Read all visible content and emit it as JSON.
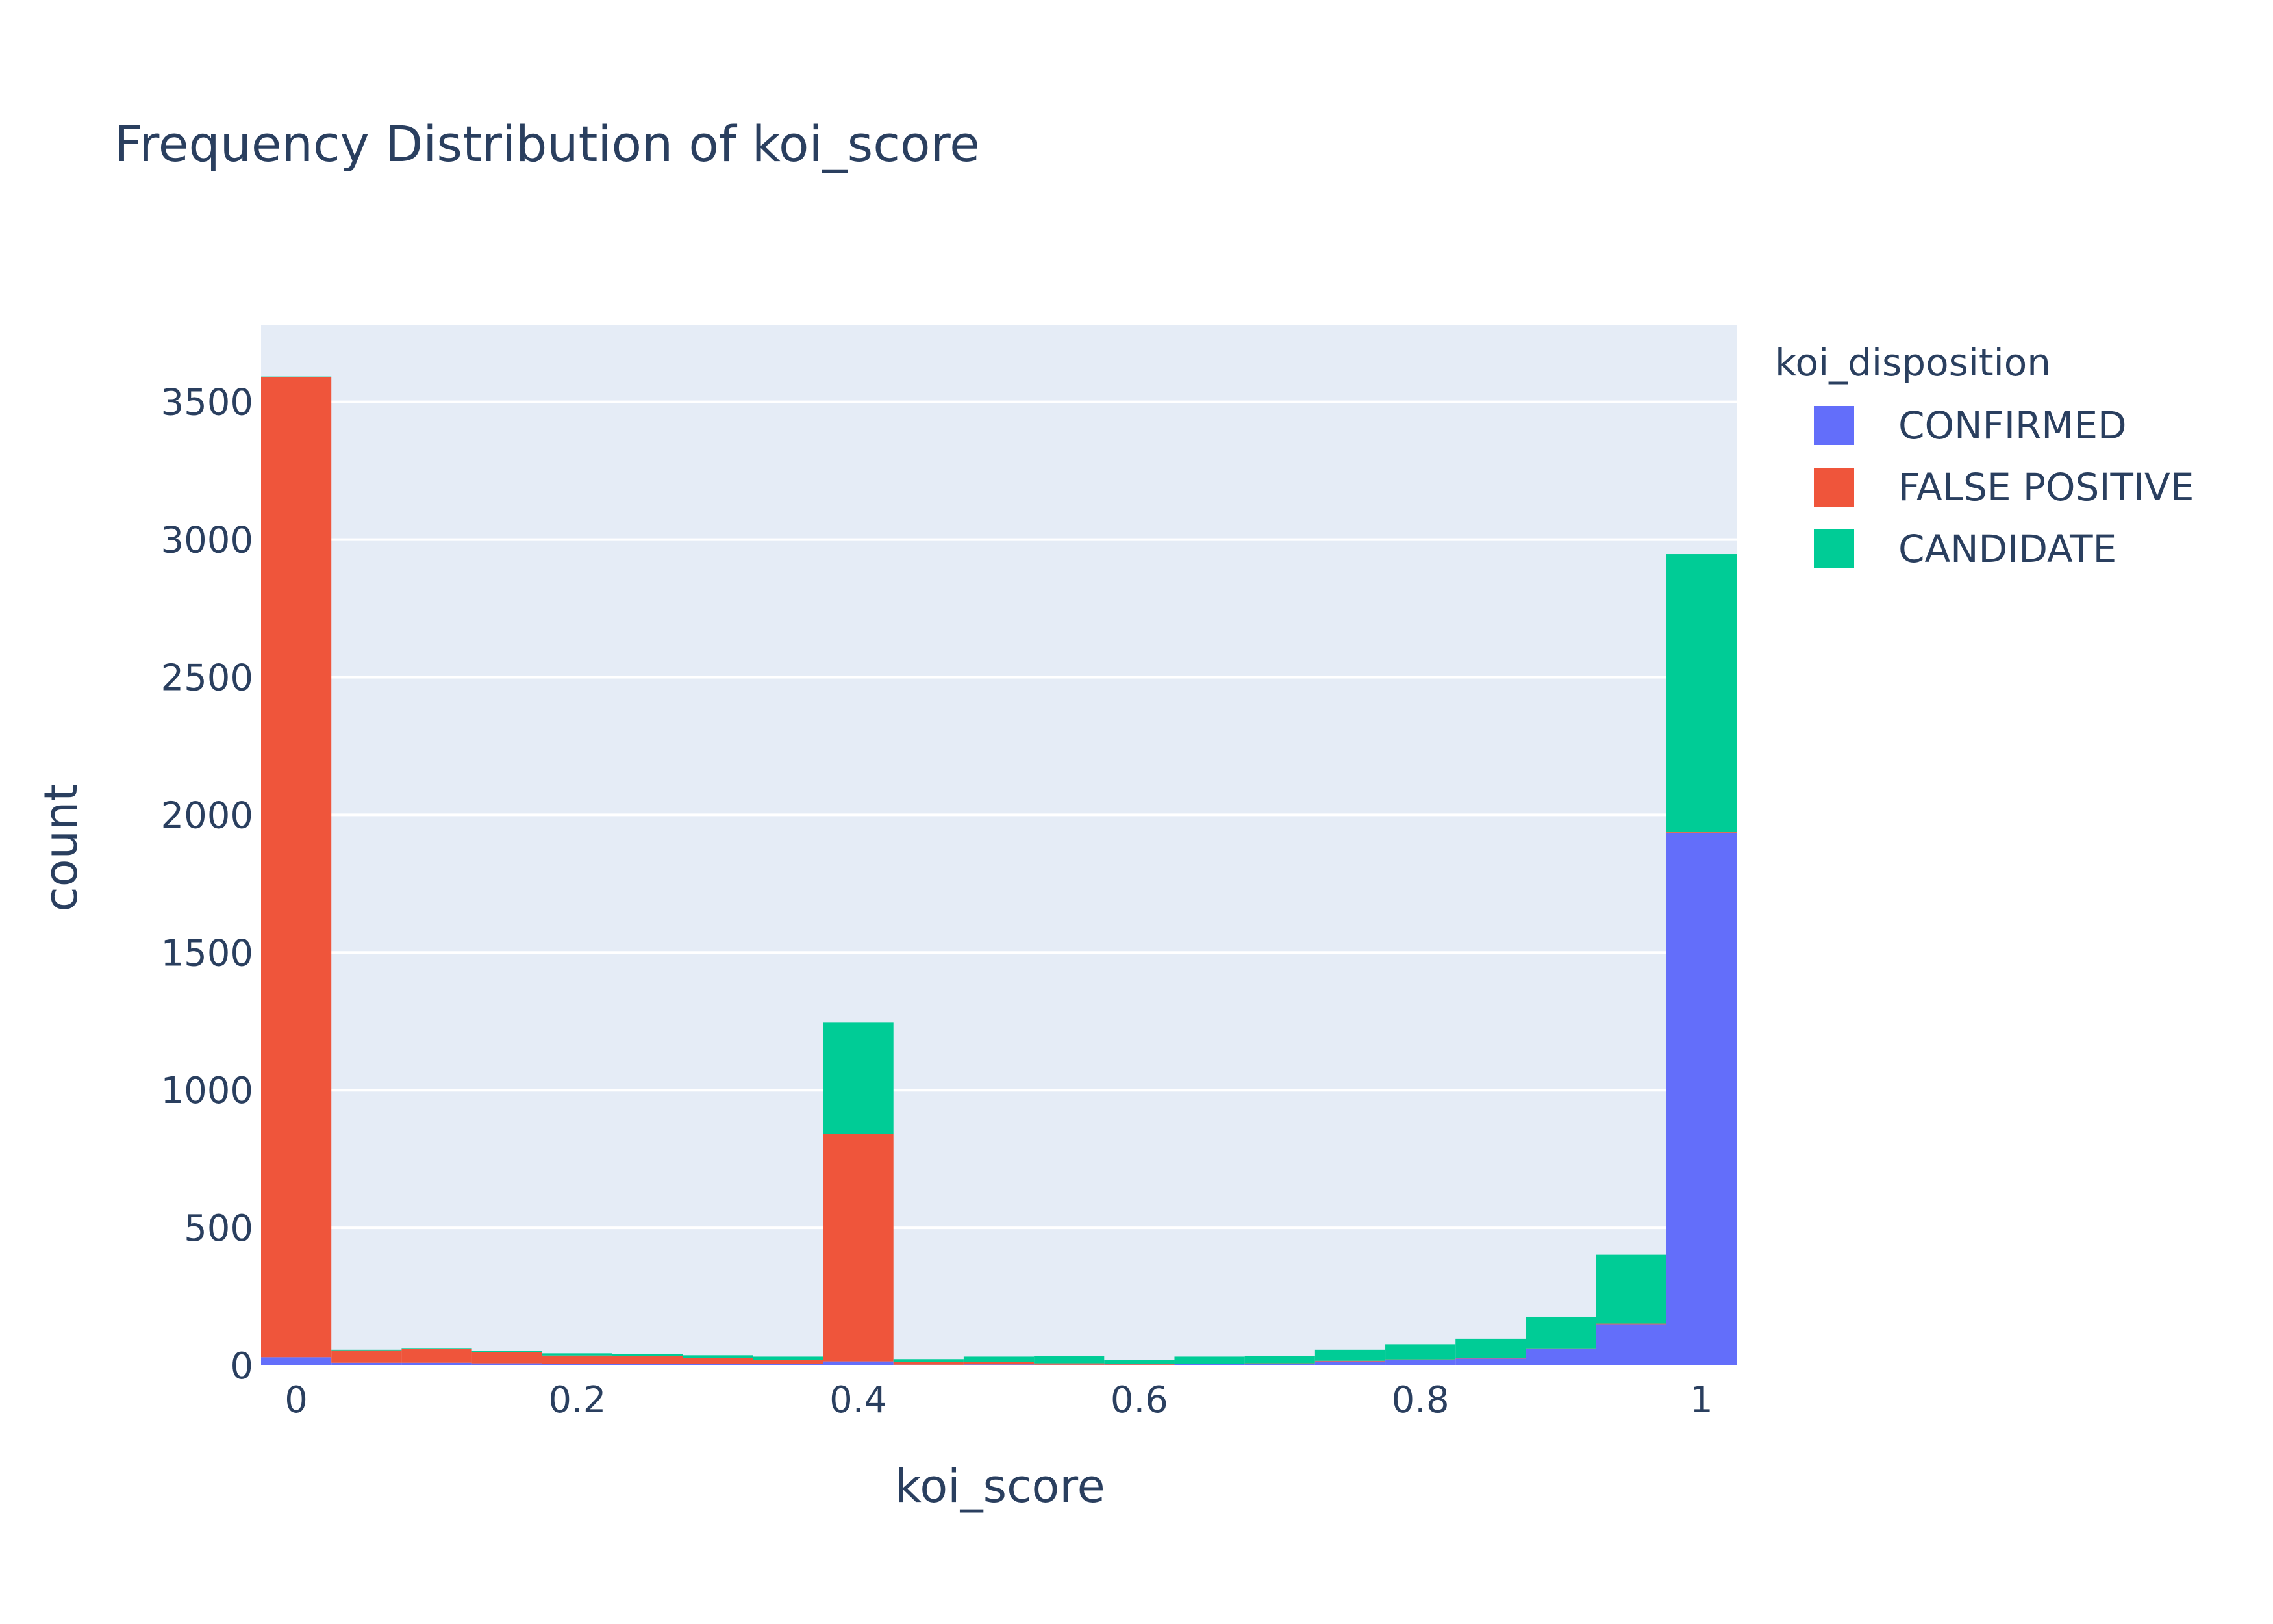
{
  "chart_data": {
    "type": "bar",
    "barmode": "stack",
    "title": "Frequency Distribution of koi_score",
    "xlabel": "koi_score",
    "ylabel": "count",
    "xlim": [
      -0.025,
      1.025
    ],
    "ylim": [
      0,
      3780
    ],
    "x_ticks": [
      0,
      0.2,
      0.4,
      0.6,
      0.8,
      1
    ],
    "x_tick_labels": [
      "0",
      "0.2",
      "0.4",
      "0.6",
      "0.8",
      "1"
    ],
    "y_ticks": [
      0,
      500,
      1000,
      1500,
      2000,
      2500,
      3000,
      3500
    ],
    "y_tick_labels": [
      "0",
      "500",
      "1000",
      "1500",
      "2000",
      "2500",
      "3000",
      "3500"
    ],
    "grid": true,
    "legend_position": "right",
    "bin_width": 0.05,
    "x": [
      0,
      0.05,
      0.1,
      0.15,
      0.2,
      0.25,
      0.3,
      0.35,
      0.4,
      0.45,
      0.5,
      0.55,
      0.6,
      0.65,
      0.7,
      0.75,
      0.8,
      0.85,
      0.9,
      0.95,
      1.0
    ],
    "legend_title": "koi_disposition",
    "series": [
      {
        "name": "CONFIRMED",
        "color": "#636efa",
        "values": [
          30,
          10,
          10,
          8,
          6,
          6,
          5,
          5,
          15,
          3,
          4,
          3,
          3,
          5,
          6,
          15,
          20,
          25,
          60,
          150,
          1935
        ]
      },
      {
        "name": "FALSE POSITIVE",
        "color": "#ef553b",
        "values": [
          3560,
          45,
          50,
          40,
          30,
          28,
          22,
          15,
          825,
          10,
          8,
          5,
          2,
          2,
          2,
          2,
          2,
          2,
          2,
          2,
          2
        ]
      },
      {
        "name": "CANDIDATE",
        "color": "#00cc96",
        "values": [
          2,
          2,
          3,
          5,
          8,
          8,
          10,
          12,
          405,
          10,
          20,
          25,
          15,
          25,
          27,
          40,
          55,
          70,
          115,
          250,
          1010
        ]
      }
    ]
  }
}
